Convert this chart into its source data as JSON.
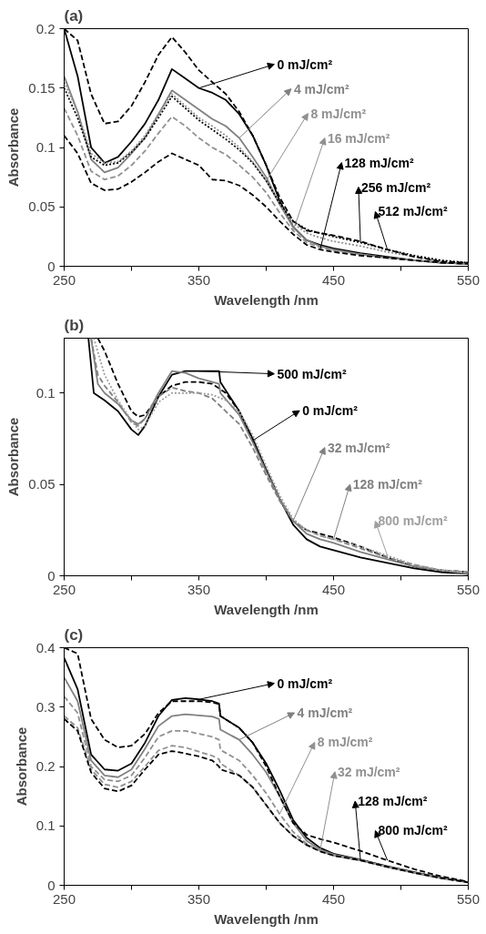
{
  "chart_data": [
    {
      "type": "line",
      "title": "(a)",
      "xlabel": "Wavelength /nm",
      "ylabel": "Absorbance",
      "xlim": [
        250,
        550
      ],
      "ylim": [
        0,
        0.2
      ],
      "xticks": [
        250,
        {
          "value": 300,
          "label": null
        },
        350,
        {
          "value": 400,
          "label": null
        },
        450,
        {
          "value": 500,
          "label": null
        },
        550
      ],
      "yticks": [
        0,
        0.05,
        0.1,
        0.15,
        0.2
      ],
      "grid": false,
      "legend": "top right",
      "marker": "none",
      "x": [
        250,
        260,
        270,
        280,
        290,
        300,
        310,
        320,
        330,
        340,
        350,
        360,
        370,
        380,
        390,
        400,
        410,
        420,
        430,
        440,
        450,
        470,
        490,
        510,
        530,
        550
      ],
      "series": [
        {
          "name": "0 mJ/cm²",
          "color": "#000000",
          "line_style": "solid",
          "values": [
            0.2,
            0.16,
            0.1,
            0.087,
            0.092,
            0.105,
            0.12,
            0.14,
            0.166,
            0.158,
            0.15,
            0.146,
            0.14,
            0.128,
            0.11,
            0.085,
            0.055,
            0.033,
            0.022,
            0.018,
            0.015,
            0.011,
            0.008,
            0.005,
            0.003,
            0.002
          ]
        },
        {
          "name": "4 mJ/cm²",
          "color": "#808080",
          "line_style": "solid",
          "values": [
            0.16,
            0.13,
            0.09,
            0.079,
            0.083,
            0.095,
            0.108,
            0.128,
            0.148,
            0.14,
            0.132,
            0.124,
            0.118,
            0.108,
            0.092,
            0.075,
            0.052,
            0.033,
            0.022,
            0.017,
            0.014,
            0.01,
            0.007,
            0.005,
            0.003,
            0.002
          ]
        },
        {
          "name": "8 mJ/cm²",
          "color": "#909090",
          "line_style": "dotted",
          "values": [
            0.155,
            0.13,
            0.095,
            0.087,
            0.088,
            0.097,
            0.11,
            0.128,
            0.145,
            0.135,
            0.125,
            0.118,
            0.11,
            0.1,
            0.088,
            0.072,
            0.052,
            0.036,
            0.028,
            0.024,
            0.021,
            0.017,
            0.012,
            0.008,
            0.004,
            0.002
          ]
        },
        {
          "name": "16 mJ/cm²",
          "color": "#909090",
          "line_style": "dashed",
          "values": [
            0.133,
            0.11,
            0.08,
            0.073,
            0.076,
            0.085,
            0.097,
            0.112,
            0.126,
            0.118,
            0.108,
            0.1,
            0.094,
            0.085,
            0.075,
            0.062,
            0.045,
            0.03,
            0.02,
            0.016,
            0.013,
            0.01,
            0.007,
            0.005,
            0.003,
            0.002
          ]
        },
        {
          "name": "128 mJ/cm²",
          "color": "#000000",
          "line_style": "dashed",
          "values": [
            0.11,
            0.095,
            0.07,
            0.064,
            0.065,
            0.071,
            0.079,
            0.088,
            0.095,
            0.09,
            0.085,
            0.073,
            0.072,
            0.068,
            0.06,
            0.05,
            0.038,
            0.027,
            0.018,
            0.014,
            0.012,
            0.009,
            0.007,
            0.005,
            0.003,
            0.002
          ]
        },
        {
          "name": "256 mJ/cm²",
          "color": "#000000",
          "line_style": "dotted",
          "values": [
            0.15,
            0.125,
            0.092,
            0.085,
            0.087,
            0.096,
            0.108,
            0.125,
            0.143,
            0.133,
            0.123,
            0.115,
            0.107,
            0.098,
            0.087,
            0.072,
            0.053,
            0.038,
            0.031,
            0.028,
            0.025,
            0.02,
            0.014,
            0.009,
            0.005,
            0.003
          ]
        },
        {
          "name": "512 mJ/cm²",
          "color": "#000000",
          "line_style": "dashed",
          "values": [
            0.2,
            0.19,
            0.145,
            0.12,
            0.122,
            0.135,
            0.155,
            0.178,
            0.193,
            0.18,
            0.165,
            0.155,
            0.145,
            0.13,
            0.11,
            0.085,
            0.058,
            0.038,
            0.03,
            0.028,
            0.026,
            0.021,
            0.014,
            0.008,
            0.004,
            0.003
          ]
        }
      ]
    },
    {
      "type": "line",
      "title": "(b)",
      "xlabel": "Wavelength /nm",
      "ylabel": "Absorbance",
      "xlim": [
        250,
        550
      ],
      "ylim": [
        0,
        0.13
      ],
      "xticks": [
        250,
        {
          "value": 300,
          "label": null
        },
        350,
        {
          "value": 400,
          "label": null
        },
        450,
        {
          "value": 500,
          "label": null
        },
        550
      ],
      "yticks": [
        0,
        0.05,
        0.1
      ],
      "grid": false,
      "legend": "top right",
      "marker": "none",
      "series": [
        {
          "name": "500 mJ/cm²",
          "color": "#000000",
          "line_style": "solid",
          "x": [
            268,
            272,
            280,
            290,
            300,
            305,
            310,
            320,
            330,
            340,
            350,
            360,
            365,
            366,
            380,
            390,
            400,
            410,
            420,
            430,
            440,
            450,
            470,
            490,
            510,
            530,
            550
          ],
          "values": [
            0.13,
            0.1,
            0.096,
            0.09,
            0.08,
            0.077,
            0.082,
            0.098,
            0.11,
            0.112,
            0.112,
            0.112,
            0.112,
            0.106,
            0.09,
            0.075,
            0.058,
            0.042,
            0.028,
            0.02,
            0.016,
            0.014,
            0.01,
            0.007,
            0.004,
            0.002,
            0.001
          ]
        },
        {
          "name": "0 mJ/cm²",
          "color": "#000000",
          "line_style": "dashed",
          "x": [
            275,
            280,
            290,
            300,
            305,
            310,
            320,
            330,
            340,
            350,
            360,
            370,
            380,
            390,
            400,
            410,
            420,
            430,
            440,
            450,
            470,
            490,
            510,
            530,
            550
          ],
          "values": [
            0.13,
            0.123,
            0.105,
            0.09,
            0.087,
            0.088,
            0.098,
            0.104,
            0.106,
            0.106,
            0.105,
            0.1,
            0.09,
            0.074,
            0.058,
            0.042,
            0.03,
            0.025,
            0.023,
            0.021,
            0.016,
            0.01,
            0.005,
            0.003,
            0.002
          ]
        },
        {
          "name": "32 mJ/cm²",
          "color": "#808080",
          "line_style": "solid",
          "x": [
            270,
            275,
            280,
            290,
            300,
            305,
            310,
            320,
            330,
            340,
            350,
            360,
            365,
            366,
            380,
            390,
            400,
            410,
            420,
            430,
            440,
            450,
            470,
            490,
            510,
            530,
            550
          ],
          "values": [
            0.13,
            0.105,
            0.1,
            0.094,
            0.085,
            0.083,
            0.086,
            0.1,
            0.112,
            0.111,
            0.108,
            0.106,
            0.105,
            0.1,
            0.088,
            0.073,
            0.057,
            0.042,
            0.03,
            0.023,
            0.02,
            0.018,
            0.013,
            0.009,
            0.005,
            0.003,
            0.001
          ]
        },
        {
          "name": "128 mJ/cm²",
          "color": "#808080",
          "line_style": "dashed",
          "x": [
            270,
            275,
            280,
            290,
            300,
            305,
            310,
            320,
            330,
            340,
            350,
            360,
            370,
            380,
            390,
            400,
            410,
            420,
            430,
            440,
            450,
            470,
            490,
            510,
            530,
            550
          ],
          "values": [
            0.13,
            0.11,
            0.104,
            0.095,
            0.084,
            0.082,
            0.086,
            0.098,
            0.103,
            0.101,
            0.1,
            0.097,
            0.09,
            0.083,
            0.07,
            0.055,
            0.041,
            0.03,
            0.025,
            0.022,
            0.02,
            0.015,
            0.01,
            0.006,
            0.003,
            0.002
          ]
        },
        {
          "name": "800 mJ/cm²",
          "color": "#a0a0a0",
          "line_style": "dotted",
          "x": [
            272,
            280,
            290,
            300,
            305,
            310,
            320,
            330,
            340,
            350,
            360,
            370,
            380,
            390,
            400,
            410,
            420,
            430,
            440,
            450,
            470,
            490,
            510,
            530,
            550
          ],
          "values": [
            0.13,
            0.11,
            0.096,
            0.085,
            0.08,
            0.082,
            0.095,
            0.1,
            0.1,
            0.1,
            0.099,
            0.096,
            0.09,
            0.077,
            0.06,
            0.044,
            0.031,
            0.025,
            0.022,
            0.02,
            0.016,
            0.011,
            0.006,
            0.003,
            0.002
          ]
        }
      ]
    },
    {
      "type": "line",
      "title": "(c)",
      "xlabel": "Wavelength /nm",
      "ylabel": "Absorbance",
      "xlim": [
        250,
        550
      ],
      "ylim": [
        0,
        0.4
      ],
      "xticks": [
        250,
        {
          "value": 300,
          "label": null
        },
        350,
        {
          "value": 400,
          "label": null
        },
        450,
        {
          "value": 500,
          "label": null
        },
        550
      ],
      "yticks": [
        0,
        0.1,
        0.2,
        0.3,
        0.4
      ],
      "grid": false,
      "legend": "top right",
      "marker": "none",
      "x": [
        250,
        260,
        270,
        280,
        290,
        300,
        310,
        320,
        330,
        340,
        350,
        360,
        365,
        366,
        380,
        390,
        400,
        410,
        420,
        430,
        440,
        450,
        470,
        490,
        510,
        530,
        550
      ],
      "series": [
        {
          "name": "0 mJ/cm²",
          "color": "#000000",
          "line_style": "solid",
          "values": [
            0.383,
            0.33,
            0.22,
            0.195,
            0.193,
            0.205,
            0.24,
            0.285,
            0.312,
            0.315,
            0.313,
            0.31,
            0.306,
            0.285,
            0.265,
            0.24,
            0.205,
            0.16,
            0.11,
            0.08,
            0.063,
            0.053,
            0.043,
            0.032,
            0.022,
            0.013,
            0.005
          ]
        },
        {
          "name": "4 mJ/cm²",
          "color": "#808080",
          "line_style": "solid",
          "values": [
            0.35,
            0.31,
            0.21,
            0.185,
            0.182,
            0.195,
            0.23,
            0.268,
            0.285,
            0.288,
            0.286,
            0.284,
            0.28,
            0.262,
            0.245,
            0.22,
            0.19,
            0.15,
            0.105,
            0.075,
            0.06,
            0.052,
            0.042,
            0.031,
            0.021,
            0.012,
            0.005
          ]
        },
        {
          "name": "8 mJ/cm²",
          "color": "#909090",
          "line_style": "dashed",
          "values": [
            0.318,
            0.29,
            0.2,
            0.178,
            0.175,
            0.185,
            0.215,
            0.25,
            0.26,
            0.26,
            0.255,
            0.25,
            0.245,
            0.228,
            0.21,
            0.185,
            0.155,
            0.12,
            0.09,
            0.07,
            0.058,
            0.05,
            0.042,
            0.031,
            0.021,
            0.012,
            0.005
          ]
        },
        {
          "name": "32 mJ/cm²",
          "color": "#909090",
          "line_style": "dashed",
          "values": [
            0.285,
            0.265,
            0.195,
            0.17,
            0.165,
            0.175,
            0.2,
            0.227,
            0.235,
            0.232,
            0.225,
            0.218,
            0.212,
            0.205,
            0.185,
            0.165,
            0.135,
            0.105,
            0.083,
            0.068,
            0.058,
            0.05,
            0.042,
            0.031,
            0.021,
            0.012,
            0.005
          ]
        },
        {
          "name": "128 mJ/cm²",
          "color": "#000000",
          "line_style": "dashed",
          "values": [
            0.28,
            0.26,
            0.19,
            0.163,
            0.158,
            0.168,
            0.195,
            0.22,
            0.226,
            0.222,
            0.217,
            0.21,
            0.2,
            0.195,
            0.185,
            0.165,
            0.135,
            0.105,
            0.083,
            0.068,
            0.057,
            0.05,
            0.042,
            0.031,
            0.021,
            0.012,
            0.005
          ]
        },
        {
          "name": "800 mJ/cm²",
          "color": "#000000",
          "line_style": "dashed",
          "values": [
            0.4,
            0.39,
            0.28,
            0.245,
            0.232,
            0.235,
            0.255,
            0.29,
            0.31,
            0.31,
            0.31,
            0.308,
            0.305,
            0.285,
            0.265,
            0.24,
            0.2,
            0.15,
            0.105,
            0.085,
            0.078,
            0.072,
            0.058,
            0.042,
            0.027,
            0.015,
            0.006
          ]
        }
      ]
    }
  ]
}
